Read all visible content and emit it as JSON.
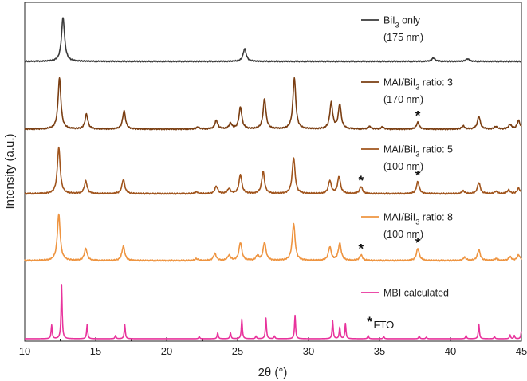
{
  "chart_data": {
    "type": "line",
    "xlabel": "2θ (°)",
    "ylabel": "Intensity (a.u.)",
    "xlim": [
      10,
      45
    ],
    "x_ticks": [
      "10",
      "15",
      "20",
      "25",
      "30",
      "35",
      "40",
      "45"
    ],
    "grid": false,
    "series": [
      {
        "key": "bii3",
        "name": "BiI3 only",
        "name_parts": [
          "BiI",
          "3",
          " only"
        ],
        "note": "(175 nm)",
        "color": "#3a3a3a",
        "peaks": [
          [
            12.7,
            1.0
          ],
          [
            25.5,
            0.29
          ],
          [
            38.8,
            0.08
          ],
          [
            41.2,
            0.06
          ]
        ]
      },
      {
        "key": "r3",
        "name": "MAI/BiI3 ratio: 3",
        "name_parts": [
          "MAI/BiI",
          "3",
          " ratio: 3"
        ],
        "note": "(170 nm)",
        "color": "#7a3e12",
        "peaks": [
          [
            12.45,
            1.0
          ],
          [
            14.35,
            0.29
          ],
          [
            17.0,
            0.36
          ],
          [
            22.2,
            0.04
          ],
          [
            23.5,
            0.17
          ],
          [
            24.5,
            0.11
          ],
          [
            25.2,
            0.43
          ],
          [
            26.9,
            0.59
          ],
          [
            29.0,
            1.0
          ],
          [
            31.6,
            0.51
          ],
          [
            32.2,
            0.48
          ],
          [
            34.3,
            0.05
          ],
          [
            35.2,
            0.04
          ],
          [
            37.7,
            0.13
          ],
          [
            40.9,
            0.06
          ],
          [
            42.0,
            0.25
          ],
          [
            43.2,
            0.05
          ],
          [
            44.2,
            0.09
          ],
          [
            44.8,
            0.17
          ]
        ]
      },
      {
        "key": "r5",
        "name": "MAI/BiI3 ratio: 5",
        "name_parts": [
          "MAI/BiI",
          "3",
          " ratio: 5"
        ],
        "note": "(100 nm)",
        "color": "#a0541c",
        "peaks": [
          [
            12.4,
            1.0
          ],
          [
            14.3,
            0.27
          ],
          [
            16.95,
            0.31
          ],
          [
            22.1,
            0.04
          ],
          [
            23.5,
            0.16
          ],
          [
            24.4,
            0.11
          ],
          [
            25.2,
            0.41
          ],
          [
            26.8,
            0.48
          ],
          [
            28.95,
            0.78
          ],
          [
            31.5,
            0.28
          ],
          [
            32.15,
            0.37
          ],
          [
            33.7,
            0.15
          ],
          [
            37.7,
            0.26
          ],
          [
            40.9,
            0.06
          ],
          [
            42.0,
            0.24
          ],
          [
            43.2,
            0.05
          ],
          [
            44.1,
            0.08
          ],
          [
            44.8,
            0.12
          ]
        ]
      },
      {
        "key": "r8",
        "name": "MAI/BiI3 ratio: 8",
        "name_parts": [
          "MAI/BiI",
          "3",
          " ratio: 8"
        ],
        "note": "(100 nm)",
        "color": "#ee9440",
        "peaks": [
          [
            12.4,
            1.0
          ],
          [
            14.3,
            0.26
          ],
          [
            16.95,
            0.31
          ],
          [
            22.1,
            0.04
          ],
          [
            23.4,
            0.15
          ],
          [
            24.4,
            0.11
          ],
          [
            25.2,
            0.39
          ],
          [
            26.4,
            0.1
          ],
          [
            26.9,
            0.39
          ],
          [
            28.95,
            0.8
          ],
          [
            31.5,
            0.29
          ],
          [
            32.2,
            0.37
          ],
          [
            33.7,
            0.12
          ],
          [
            37.7,
            0.26
          ],
          [
            41.0,
            0.07
          ],
          [
            42.0,
            0.23
          ],
          [
            43.2,
            0.04
          ],
          [
            44.2,
            0.08
          ],
          [
            44.8,
            0.12
          ]
        ]
      },
      {
        "key": "mbi",
        "name": "MBI calculated",
        "name_parts": [
          "MBI calculated",
          "",
          ""
        ],
        "note": "",
        "color": "#e8339c",
        "peaks": [
          [
            11.9,
            0.25
          ],
          [
            12.6,
            1.0
          ],
          [
            14.4,
            0.26
          ],
          [
            16.4,
            0.06
          ],
          [
            17.05,
            0.26
          ],
          [
            22.3,
            0.04
          ],
          [
            23.6,
            0.11
          ],
          [
            24.5,
            0.11
          ],
          [
            25.3,
            0.36
          ],
          [
            26.3,
            0.05
          ],
          [
            27.0,
            0.38
          ],
          [
            27.6,
            0.05
          ],
          [
            29.05,
            0.43
          ],
          [
            31.7,
            0.33
          ],
          [
            32.2,
            0.21
          ],
          [
            32.6,
            0.28
          ],
          [
            34.2,
            0.06
          ],
          [
            35.3,
            0.04
          ],
          [
            37.8,
            0.05
          ],
          [
            38.3,
            0.03
          ],
          [
            41.1,
            0.06
          ],
          [
            42.0,
            0.27
          ],
          [
            43.1,
            0.04
          ],
          [
            44.2,
            0.07
          ],
          [
            44.5,
            0.06
          ],
          [
            45.0,
            0.14
          ]
        ]
      }
    ],
    "annotations": [
      {
        "key": "star-r3",
        "text": "*",
        "x": 37.7,
        "series": "r3"
      },
      {
        "key": "star-r5-a",
        "text": "*",
        "x": 33.7,
        "series": "r5"
      },
      {
        "key": "star-r5-b",
        "text": "*",
        "x": 37.7,
        "series": "r5"
      },
      {
        "key": "star-r8-a",
        "text": "*",
        "x": 33.7,
        "series": "r8"
      },
      {
        "key": "star-r8-b",
        "text": "*",
        "x": 37.7,
        "series": "r8"
      }
    ],
    "fto_label": {
      "star": "*",
      "text": "FTO",
      "x": 34.3
    }
  }
}
